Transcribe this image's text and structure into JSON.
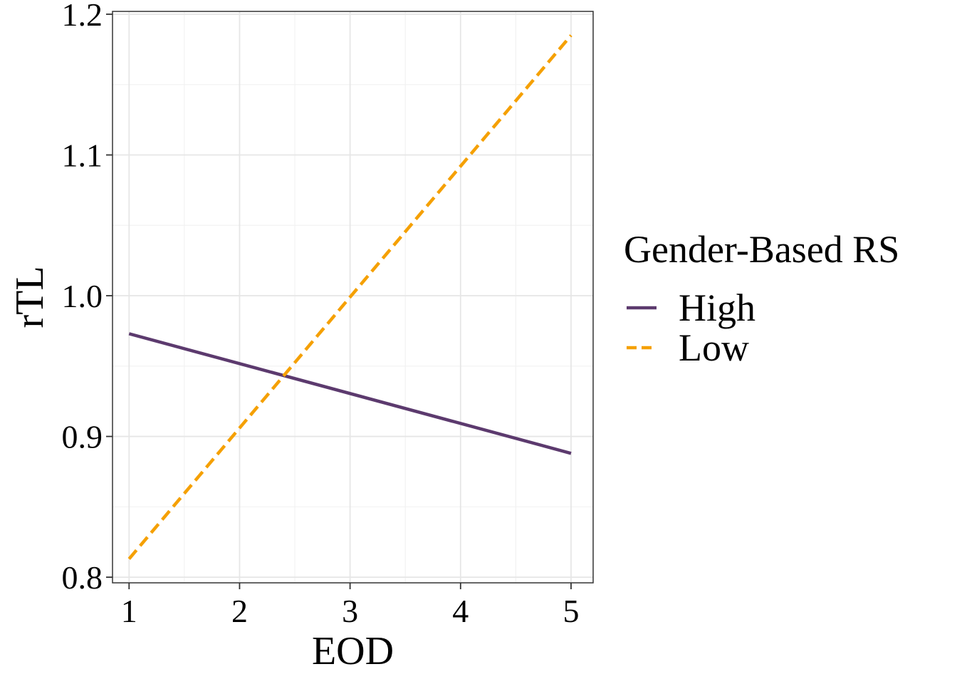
{
  "chart_data": {
    "type": "line",
    "xlabel": "EOD",
    "ylabel": "rTL",
    "xlim": [
      0.85,
      5.2
    ],
    "ylim": [
      0.796,
      1.202
    ],
    "x_ticks": [
      1,
      2,
      3,
      4,
      5
    ],
    "x_tick_labels": [
      "1",
      "2",
      "3",
      "4",
      "5"
    ],
    "y_ticks": [
      0.8,
      0.9,
      1.0,
      1.1,
      1.2
    ],
    "y_tick_labels": [
      "0.8",
      "0.9",
      "1.0",
      "1.1",
      "1.2"
    ],
    "grid": true,
    "legend": {
      "title": "Gender-Based RS",
      "position": "right"
    },
    "series": [
      {
        "name": "High",
        "x": [
          1,
          5
        ],
        "y": [
          0.973,
          0.888
        ],
        "color": "#5c3a6e",
        "dash": "solid"
      },
      {
        "name": "Low",
        "x": [
          1,
          5
        ],
        "y": [
          0.813,
          1.185
        ],
        "color": "#f5a000",
        "dash": "dashed"
      }
    ]
  }
}
